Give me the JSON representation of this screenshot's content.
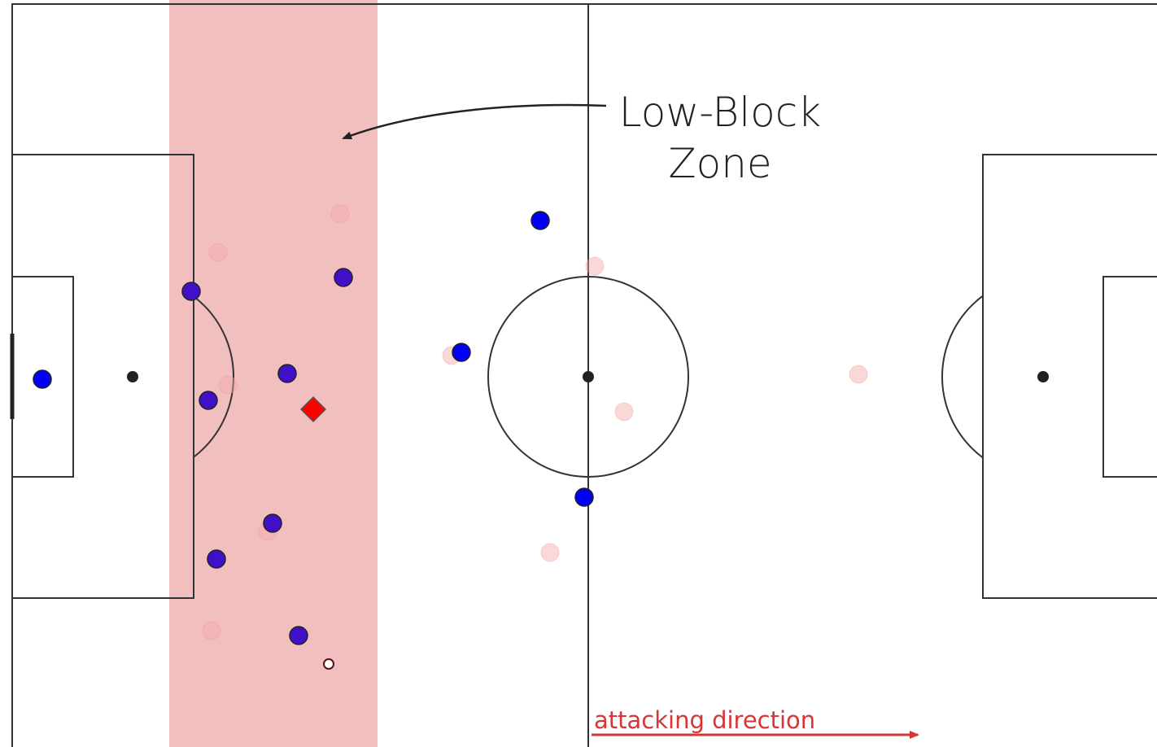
{
  "annotation": {
    "lines": [
      "Low-Block",
      "Zone"
    ]
  },
  "direction_label": "attacking direction"
}
